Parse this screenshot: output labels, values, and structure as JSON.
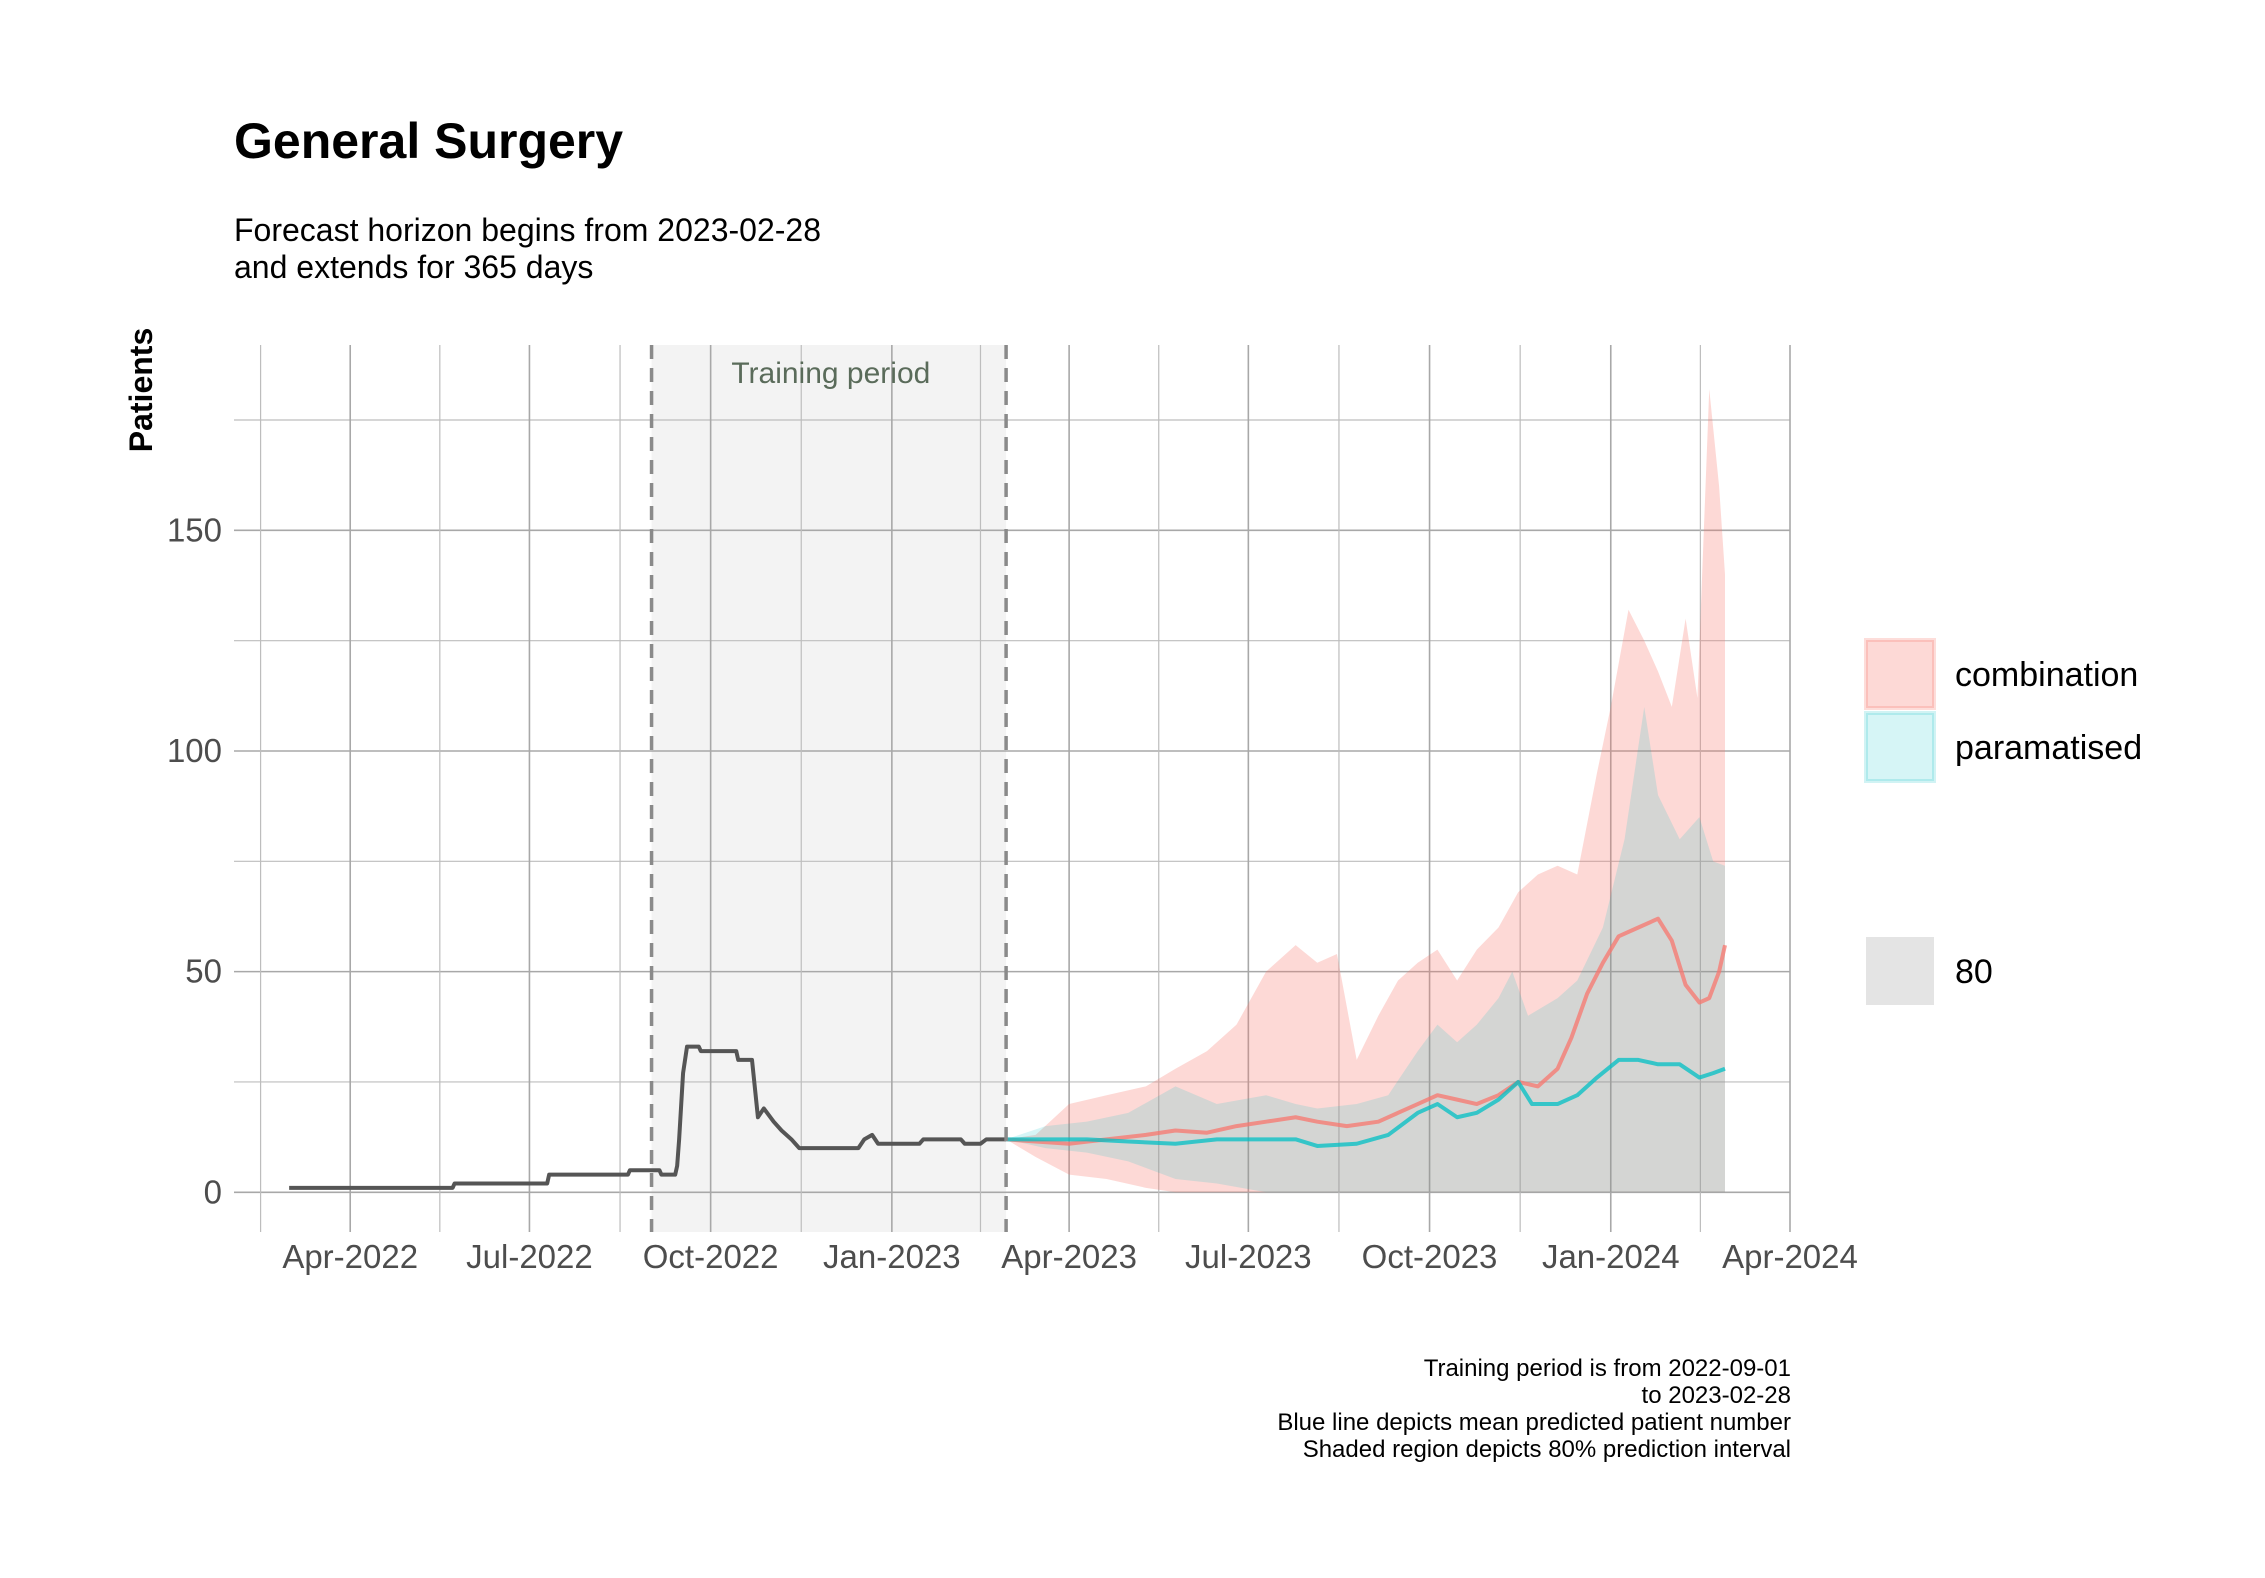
{
  "chart_data": {
    "type": "line",
    "title": "General Surgery",
    "subtitle": [
      "Forecast horizon begins from 2023-02-28",
      "and extends for 365 days"
    ],
    "ylabel": "Patients",
    "xlabel": "",
    "xlim": [
      "2022-02-01",
      "2024-04-01"
    ],
    "ylim": [
      -9,
      192
    ],
    "y_ticks": [
      0,
      50,
      100,
      150
    ],
    "x_ticks": [
      "Apr-2022",
      "Jul-2022",
      "Oct-2022",
      "Jan-2023",
      "Apr-2023",
      "Jul-2023",
      "Oct-2023",
      "Jan-2024",
      "Apr-2024"
    ],
    "x_tick_dates": [
      "2022-04-01",
      "2022-07-01",
      "2022-10-01",
      "2023-01-01",
      "2023-04-01",
      "2023-07-01",
      "2023-10-01",
      "2024-01-01",
      "2024-04-01"
    ],
    "grid": true,
    "training_period": {
      "label": "Training period",
      "start": "2022-09-01",
      "end": "2023-02-28"
    },
    "observed": {
      "color": "#555555",
      "points": [
        [
          "2022-03-01",
          1
        ],
        [
          "2022-05-23",
          1
        ],
        [
          "2022-05-24",
          2
        ],
        [
          "2022-06-03",
          2
        ],
        [
          "2022-07-10",
          2
        ],
        [
          "2022-07-11",
          4
        ],
        [
          "2022-08-20",
          4
        ],
        [
          "2022-08-21",
          5
        ],
        [
          "2022-09-05",
          5
        ],
        [
          "2022-09-06",
          4
        ],
        [
          "2022-09-13",
          4
        ],
        [
          "2022-09-14",
          6
        ],
        [
          "2022-09-15",
          12
        ],
        [
          "2022-09-17",
          27
        ],
        [
          "2022-09-19",
          33
        ],
        [
          "2022-09-25",
          33
        ],
        [
          "2022-09-26",
          32
        ],
        [
          "2022-10-14",
          32
        ],
        [
          "2022-10-15",
          30
        ],
        [
          "2022-10-22",
          30
        ],
        [
          "2022-10-25",
          17
        ],
        [
          "2022-10-28",
          19
        ],
        [
          "2022-11-02",
          16
        ],
        [
          "2022-11-06",
          14
        ],
        [
          "2022-11-11",
          12
        ],
        [
          "2022-11-15",
          10
        ],
        [
          "2022-12-15",
          10
        ],
        [
          "2022-12-18",
          12
        ],
        [
          "2022-12-22",
          13
        ],
        [
          "2022-12-25",
          11
        ],
        [
          "2023-01-15",
          11
        ],
        [
          "2023-01-17",
          12
        ],
        [
          "2023-02-05",
          12
        ],
        [
          "2023-02-07",
          11
        ],
        [
          "2023-02-15",
          11
        ],
        [
          "2023-02-18",
          12
        ],
        [
          "2023-02-28",
          12
        ]
      ]
    },
    "series": [
      {
        "name": "combination",
        "color": "#F8766D",
        "mean": [
          [
            "2023-02-28",
            12
          ],
          [
            "2023-03-15",
            11.5
          ],
          [
            "2023-04-01",
            11
          ],
          [
            "2023-04-20",
            12
          ],
          [
            "2023-05-10",
            13
          ],
          [
            "2023-05-25",
            14
          ],
          [
            "2023-06-10",
            13.5
          ],
          [
            "2023-06-25",
            15
          ],
          [
            "2023-07-10",
            16
          ],
          [
            "2023-07-25",
            17
          ],
          [
            "2023-08-05",
            16
          ],
          [
            "2023-08-20",
            15
          ],
          [
            "2023-09-05",
            16
          ],
          [
            "2023-09-15",
            18
          ],
          [
            "2023-09-25",
            20
          ],
          [
            "2023-10-05",
            22
          ],
          [
            "2023-10-15",
            21
          ],
          [
            "2023-10-25",
            20
          ],
          [
            "2023-11-05",
            22
          ],
          [
            "2023-11-15",
            25
          ],
          [
            "2023-11-25",
            24
          ],
          [
            "2023-12-05",
            28
          ],
          [
            "2023-12-12",
            35
          ],
          [
            "2023-12-20",
            45
          ],
          [
            "2023-12-28",
            52
          ],
          [
            "2024-01-05",
            58
          ],
          [
            "2024-01-15",
            60
          ],
          [
            "2024-01-25",
            62
          ],
          [
            "2024-02-01",
            57
          ],
          [
            "2024-02-08",
            47
          ],
          [
            "2024-02-15",
            43
          ],
          [
            "2024-02-20",
            44
          ],
          [
            "2024-02-25",
            50
          ],
          [
            "2024-02-28",
            56
          ]
        ],
        "band": [
          [
            "2023-02-28",
            12,
            12
          ],
          [
            "2023-03-15",
            13,
            8
          ],
          [
            "2023-04-01",
            20,
            4
          ],
          [
            "2023-04-20",
            22,
            3
          ],
          [
            "2023-05-10",
            24,
            1
          ],
          [
            "2023-05-25",
            28,
            0
          ],
          [
            "2023-06-10",
            32,
            0
          ],
          [
            "2023-06-25",
            38,
            0
          ],
          [
            "2023-07-10",
            50,
            0
          ],
          [
            "2023-07-25",
            56,
            0
          ],
          [
            "2023-08-05",
            52,
            0
          ],
          [
            "2023-08-15",
            54,
            0
          ],
          [
            "2023-08-25",
            30,
            0
          ],
          [
            "2023-09-05",
            40,
            0
          ],
          [
            "2023-09-15",
            48,
            0
          ],
          [
            "2023-09-25",
            52,
            0
          ],
          [
            "2023-10-05",
            55,
            0
          ],
          [
            "2023-10-15",
            48,
            0
          ],
          [
            "2023-10-25",
            55,
            0
          ],
          [
            "2023-11-05",
            60,
            0
          ],
          [
            "2023-11-15",
            68,
            0
          ],
          [
            "2023-11-25",
            72,
            0
          ],
          [
            "2023-12-05",
            74,
            0
          ],
          [
            "2023-12-15",
            72,
            0
          ],
          [
            "2023-12-25",
            95,
            0
          ],
          [
            "2024-01-01",
            110,
            0
          ],
          [
            "2024-01-10",
            132,
            0
          ],
          [
            "2024-01-18",
            125,
            0
          ],
          [
            "2024-01-25",
            118,
            0
          ],
          [
            "2024-02-01",
            110,
            0
          ],
          [
            "2024-02-08",
            130,
            0
          ],
          [
            "2024-02-14",
            112,
            0
          ],
          [
            "2024-02-20",
            182,
            0
          ],
          [
            "2024-02-25",
            160,
            0
          ],
          [
            "2024-02-28",
            140,
            0
          ]
        ]
      },
      {
        "name": "paramatised",
        "color": "#00BFC4",
        "mean": [
          [
            "2023-02-28",
            12
          ],
          [
            "2023-03-20",
            12
          ],
          [
            "2023-04-10",
            12
          ],
          [
            "2023-05-01",
            11.5
          ],
          [
            "2023-05-25",
            11
          ],
          [
            "2023-06-15",
            12
          ],
          [
            "2023-07-10",
            12
          ],
          [
            "2023-07-25",
            12
          ],
          [
            "2023-08-05",
            10.5
          ],
          [
            "2023-08-25",
            11
          ],
          [
            "2023-09-10",
            13
          ],
          [
            "2023-09-25",
            18
          ],
          [
            "2023-10-05",
            20
          ],
          [
            "2023-10-15",
            17
          ],
          [
            "2023-10-25",
            18
          ],
          [
            "2023-11-05",
            21
          ],
          [
            "2023-11-15",
            25
          ],
          [
            "2023-11-22",
            20
          ],
          [
            "2023-12-05",
            20
          ],
          [
            "2023-12-15",
            22
          ],
          [
            "2023-12-25",
            26
          ],
          [
            "2024-01-05",
            30
          ],
          [
            "2024-01-15",
            30
          ],
          [
            "2024-01-25",
            29
          ],
          [
            "2024-02-05",
            29
          ],
          [
            "2024-02-15",
            26
          ],
          [
            "2024-02-22",
            27
          ],
          [
            "2024-02-28",
            28
          ]
        ],
        "band": [
          [
            "2023-02-28",
            12,
            12
          ],
          [
            "2023-03-20",
            15,
            10
          ],
          [
            "2023-04-10",
            16,
            9
          ],
          [
            "2023-05-01",
            18,
            7
          ],
          [
            "2023-05-25",
            24,
            3
          ],
          [
            "2023-06-15",
            20,
            2
          ],
          [
            "2023-07-10",
            22,
            0
          ],
          [
            "2023-07-25",
            20,
            0
          ],
          [
            "2023-08-05",
            19,
            0
          ],
          [
            "2023-08-25",
            20,
            0
          ],
          [
            "2023-09-10",
            22,
            0
          ],
          [
            "2023-09-25",
            32,
            0
          ],
          [
            "2023-10-05",
            38,
            0
          ],
          [
            "2023-10-15",
            34,
            0
          ],
          [
            "2023-10-25",
            38,
            0
          ],
          [
            "2023-11-05",
            44,
            0
          ],
          [
            "2023-11-12",
            50,
            0
          ],
          [
            "2023-11-20",
            40,
            0
          ],
          [
            "2023-12-05",
            44,
            0
          ],
          [
            "2023-12-15",
            48,
            0
          ],
          [
            "2023-12-28",
            60,
            0
          ],
          [
            "2024-01-08",
            80,
            0
          ],
          [
            "2024-01-18",
            110,
            0
          ],
          [
            "2024-01-25",
            90,
            0
          ],
          [
            "2024-02-05",
            80,
            0
          ],
          [
            "2024-02-15",
            85,
            0
          ],
          [
            "2024-02-22",
            75,
            0
          ],
          [
            "2024-02-28",
            74,
            0
          ]
        ]
      }
    ],
    "legend": {
      "placement": "right",
      "entries": [
        {
          "label": "combination",
          "color": "#F8766D"
        },
        {
          "label": "paramatised",
          "color": "#00BFC4"
        }
      ],
      "interval_entry": {
        "label": "80",
        "color": "#cccccc"
      }
    },
    "caption": [
      "Training period is from 2022-09-01",
      "to 2023-02-28",
      "Blue line depicts mean predicted patient number",
      "Shaded region depicts 80% prediction interval"
    ]
  }
}
